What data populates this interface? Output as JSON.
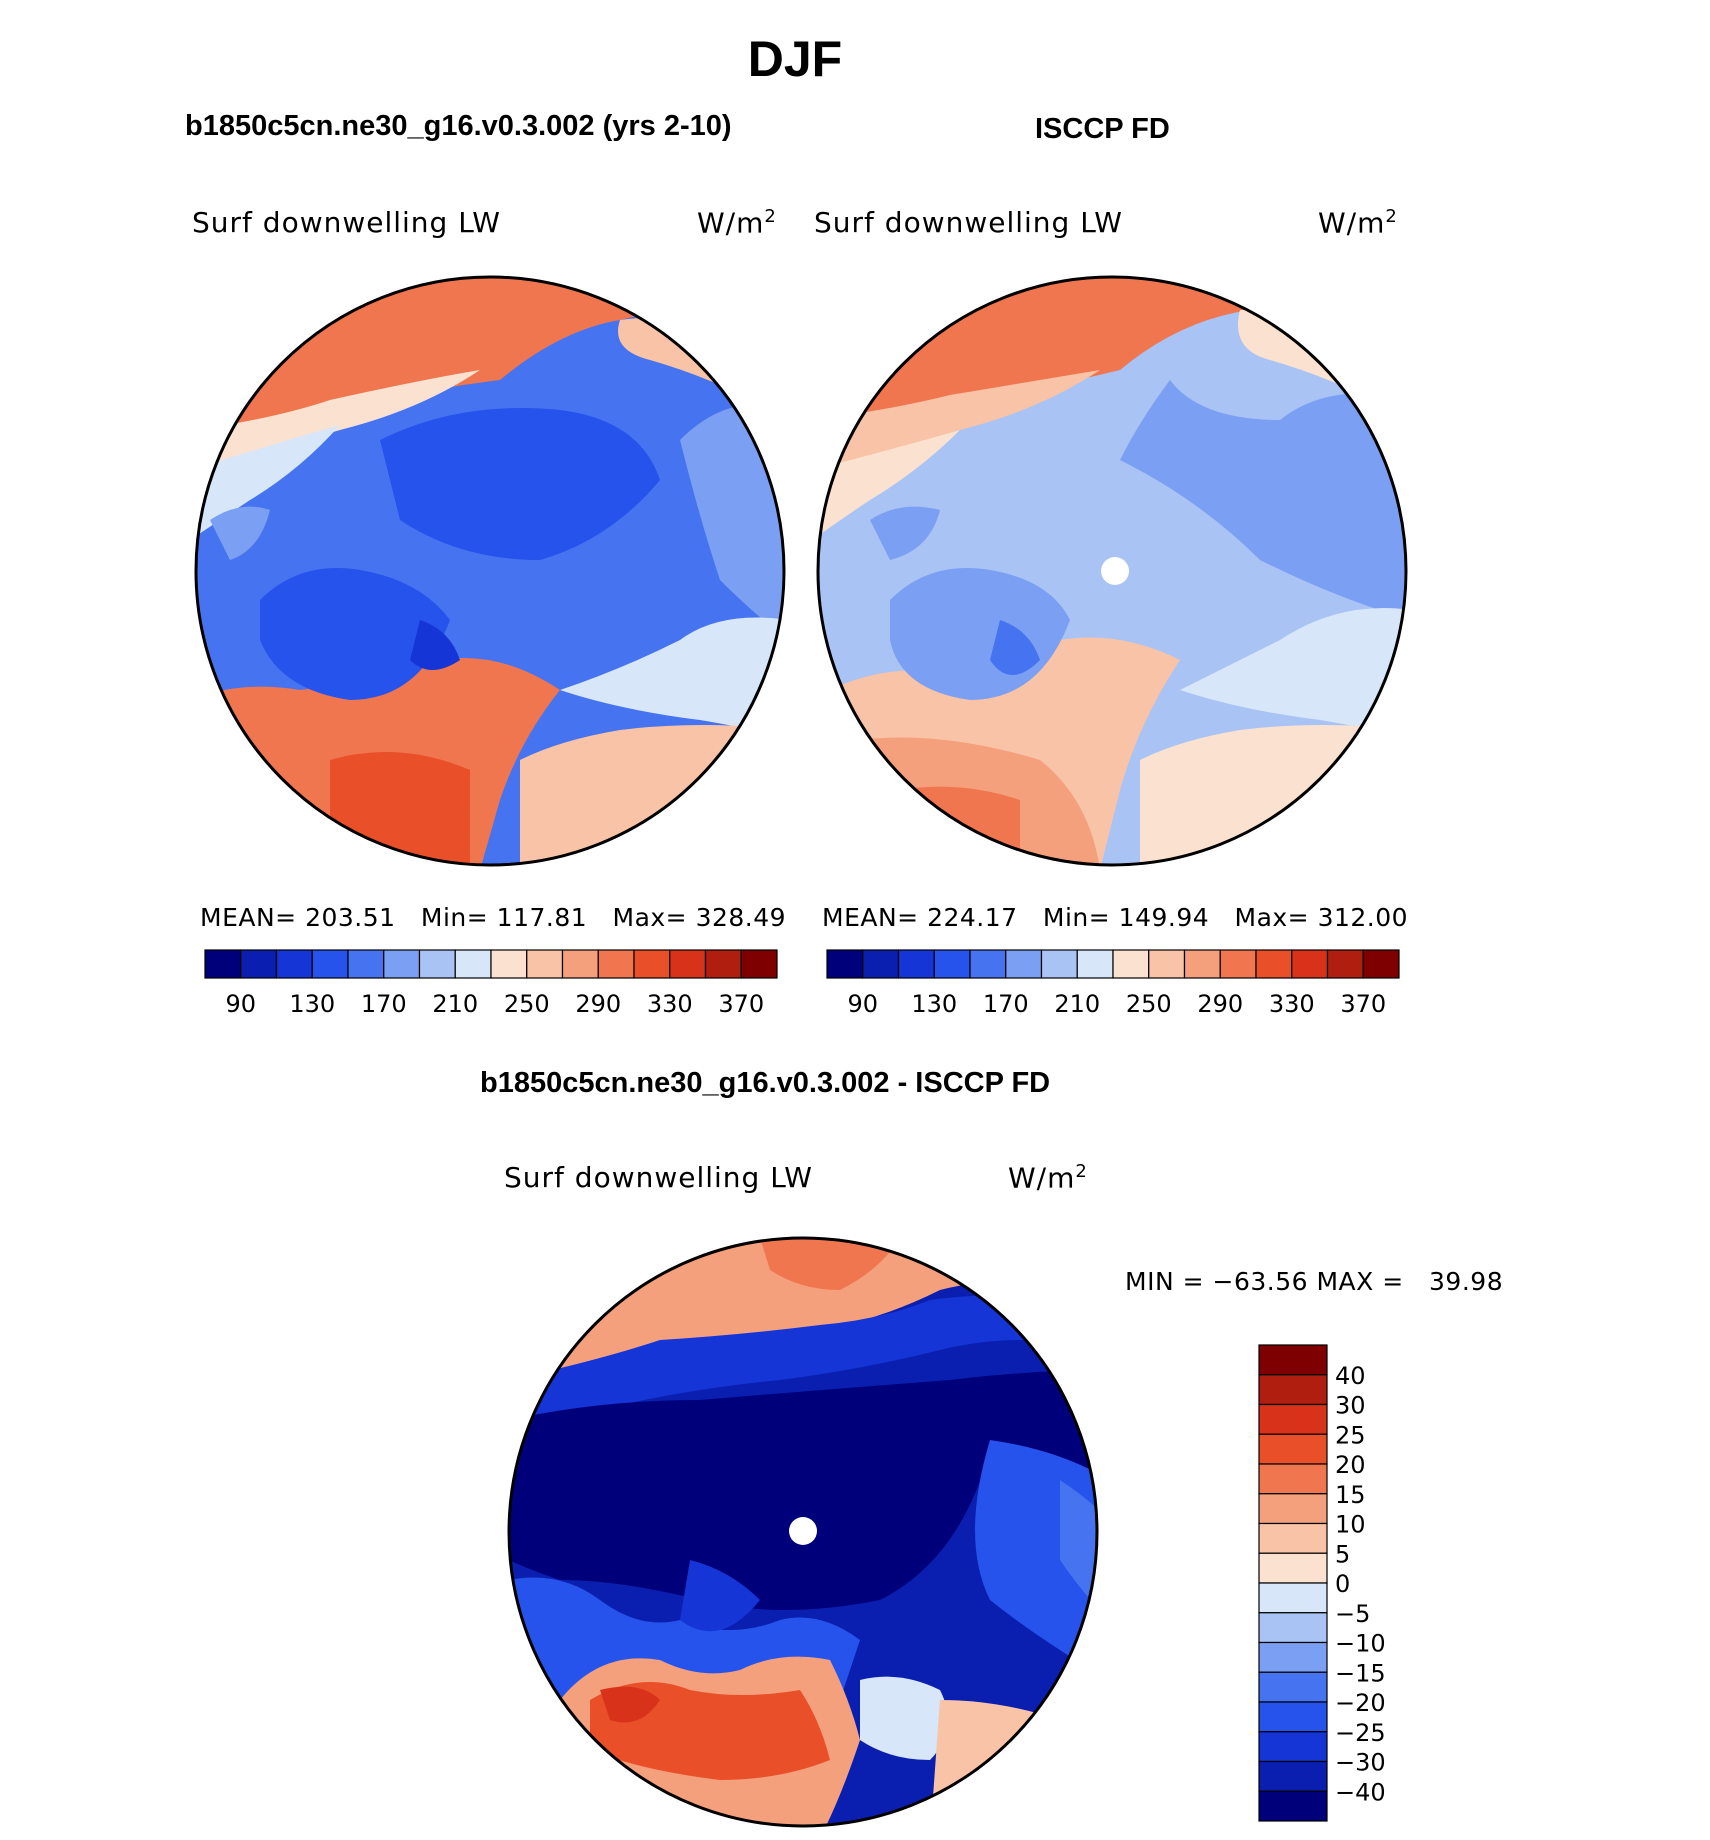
{
  "season": "DJF",
  "left_title": "b1850c5cn.ne30_g16.v0.3.002 (yrs 2-10)",
  "right_title": "ISCCP FD",
  "diff_title": "b1850c5cn.ne30_g16.v0.3.002 - ISCCP FD",
  "variable": "Surf downwelling LW",
  "units": "W/m",
  "units_exp": "2",
  "left_stats": {
    "mean_label": "MEAN=",
    "mean": "203.51",
    "min_label": "Min=",
    "min": "117.81",
    "max_label": "Max=",
    "max": "328.49"
  },
  "right_stats": {
    "mean_label": "MEAN=",
    "mean": "224.17",
    "min_label": "Min=",
    "min": "149.94",
    "max_label": "Max=",
    "max": "312.00"
  },
  "diff_stats": {
    "min_label": "MIN =",
    "min": "−63.56",
    "max_label": "MAX =",
    "max": "39.98"
  },
  "abs_colorbar": {
    "labels": [
      "90",
      "130",
      "170",
      "210",
      "250",
      "290",
      "330",
      "370"
    ],
    "colors": [
      "#00007a",
      "#0a1fb0",
      "#1535d6",
      "#2553ec",
      "#4673f0",
      "#7b9ff2",
      "#a9c3f5",
      "#d7e6f8",
      "#fbe2d0",
      "#f8c3a6",
      "#f5a07d",
      "#f07650",
      "#e9502a",
      "#d8331a",
      "#b01e10",
      "#7e0000"
    ]
  },
  "diff_colorbar": {
    "labels": [
      "40",
      "30",
      "25",
      "20",
      "15",
      "10",
      "5",
      "0",
      "−5",
      "−10",
      "−15",
      "−20",
      "−25",
      "−30",
      "−40"
    ],
    "colors": [
      "#7e0000",
      "#b01e10",
      "#d8331a",
      "#e9502a",
      "#f07650",
      "#f5a07d",
      "#f8c3a6",
      "#fbe2d0",
      "#d7e6f8",
      "#a9c3f5",
      "#7b9ff2",
      "#4673f0",
      "#2553ec",
      "#1535d6",
      "#0a1fb0",
      "#00007a"
    ]
  }
}
